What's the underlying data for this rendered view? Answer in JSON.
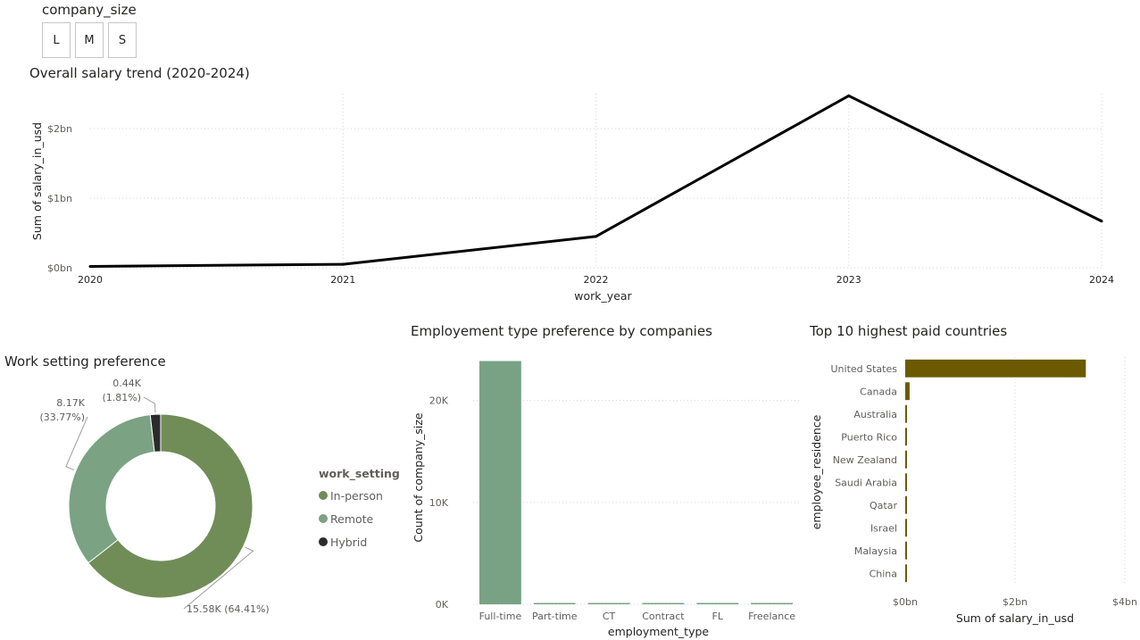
{
  "slicer": {
    "title": "company_size",
    "options": [
      "L",
      "M",
      "S"
    ]
  },
  "colors": {
    "line": "#000000",
    "in_person": "#708d58",
    "remote": "#7aa283",
    "hybrid": "#2b2b2b",
    "employment_bar": "#78a283",
    "country_bar": "#6b5a00"
  },
  "chart_data": [
    {
      "type": "line",
      "title": "Overall salary trend (2020-2024)",
      "xlabel": "work_year",
      "ylabel": "Sum of salary_in_usd",
      "x": [
        "2020",
        "2021",
        "2022",
        "2023",
        "2024"
      ],
      "values": [
        0.02,
        0.05,
        0.45,
        2.47,
        0.67
      ],
      "y_unit": "$bn",
      "ylim": [
        0,
        2.5
      ],
      "yticks": [
        0,
        1,
        2
      ],
      "ytick_labels": [
        "$0bn",
        "$1bn",
        "$2bn"
      ],
      "grid": true
    },
    {
      "type": "pie",
      "variant": "donut",
      "title": "Work setting preference",
      "legend_title": "work_setting",
      "legend_placement": "right",
      "slices": [
        {
          "name": "In-person",
          "value": 15.58,
          "label": "15.58K (64.41%)",
          "color_key": "in_person"
        },
        {
          "name": "Remote",
          "value": 8.17,
          "label": "8.17K\n(33.77%)",
          "color_key": "remote"
        },
        {
          "name": "Hybrid",
          "value": 0.44,
          "label": "0.44K\n(1.81%)",
          "color_key": "hybrid"
        }
      ]
    },
    {
      "type": "bar",
      "title": "Employement type preference by companies",
      "xlabel": "employment_type",
      "ylabel": "Count of company_size",
      "categories": [
        "Full-time",
        "Part-time",
        "CT",
        "Contract",
        "FL",
        "Freelance"
      ],
      "values": [
        23870,
        80,
        60,
        50,
        40,
        30
      ],
      "ylim": [
        0,
        24000
      ],
      "yticks": [
        0,
        10000,
        20000
      ],
      "ytick_labels": [
        "0K",
        "10K",
        "20K"
      ],
      "grid": true
    },
    {
      "type": "bar",
      "orientation": "horizontal",
      "title": "Top 10 highest paid countries",
      "xlabel": "Sum of salary_in_usd",
      "ylabel": "employee_residence",
      "categories": [
        "United States",
        "Canada",
        "Australia",
        "Puerto Rico",
        "New Zealand",
        "Saudi Arabia",
        "Qatar",
        "Israel",
        "Malaysia",
        "China"
      ],
      "values": [
        3.29,
        0.08,
        0.02,
        0.015,
        0.012,
        0.01,
        0.01,
        0.009,
        0.008,
        0.007
      ],
      "x_unit": "$bn",
      "xlim": [
        0,
        4
      ],
      "xticks": [
        0,
        2,
        4
      ],
      "xtick_labels": [
        "$0bn",
        "$2bn",
        "$4bn"
      ],
      "grid": true
    }
  ]
}
